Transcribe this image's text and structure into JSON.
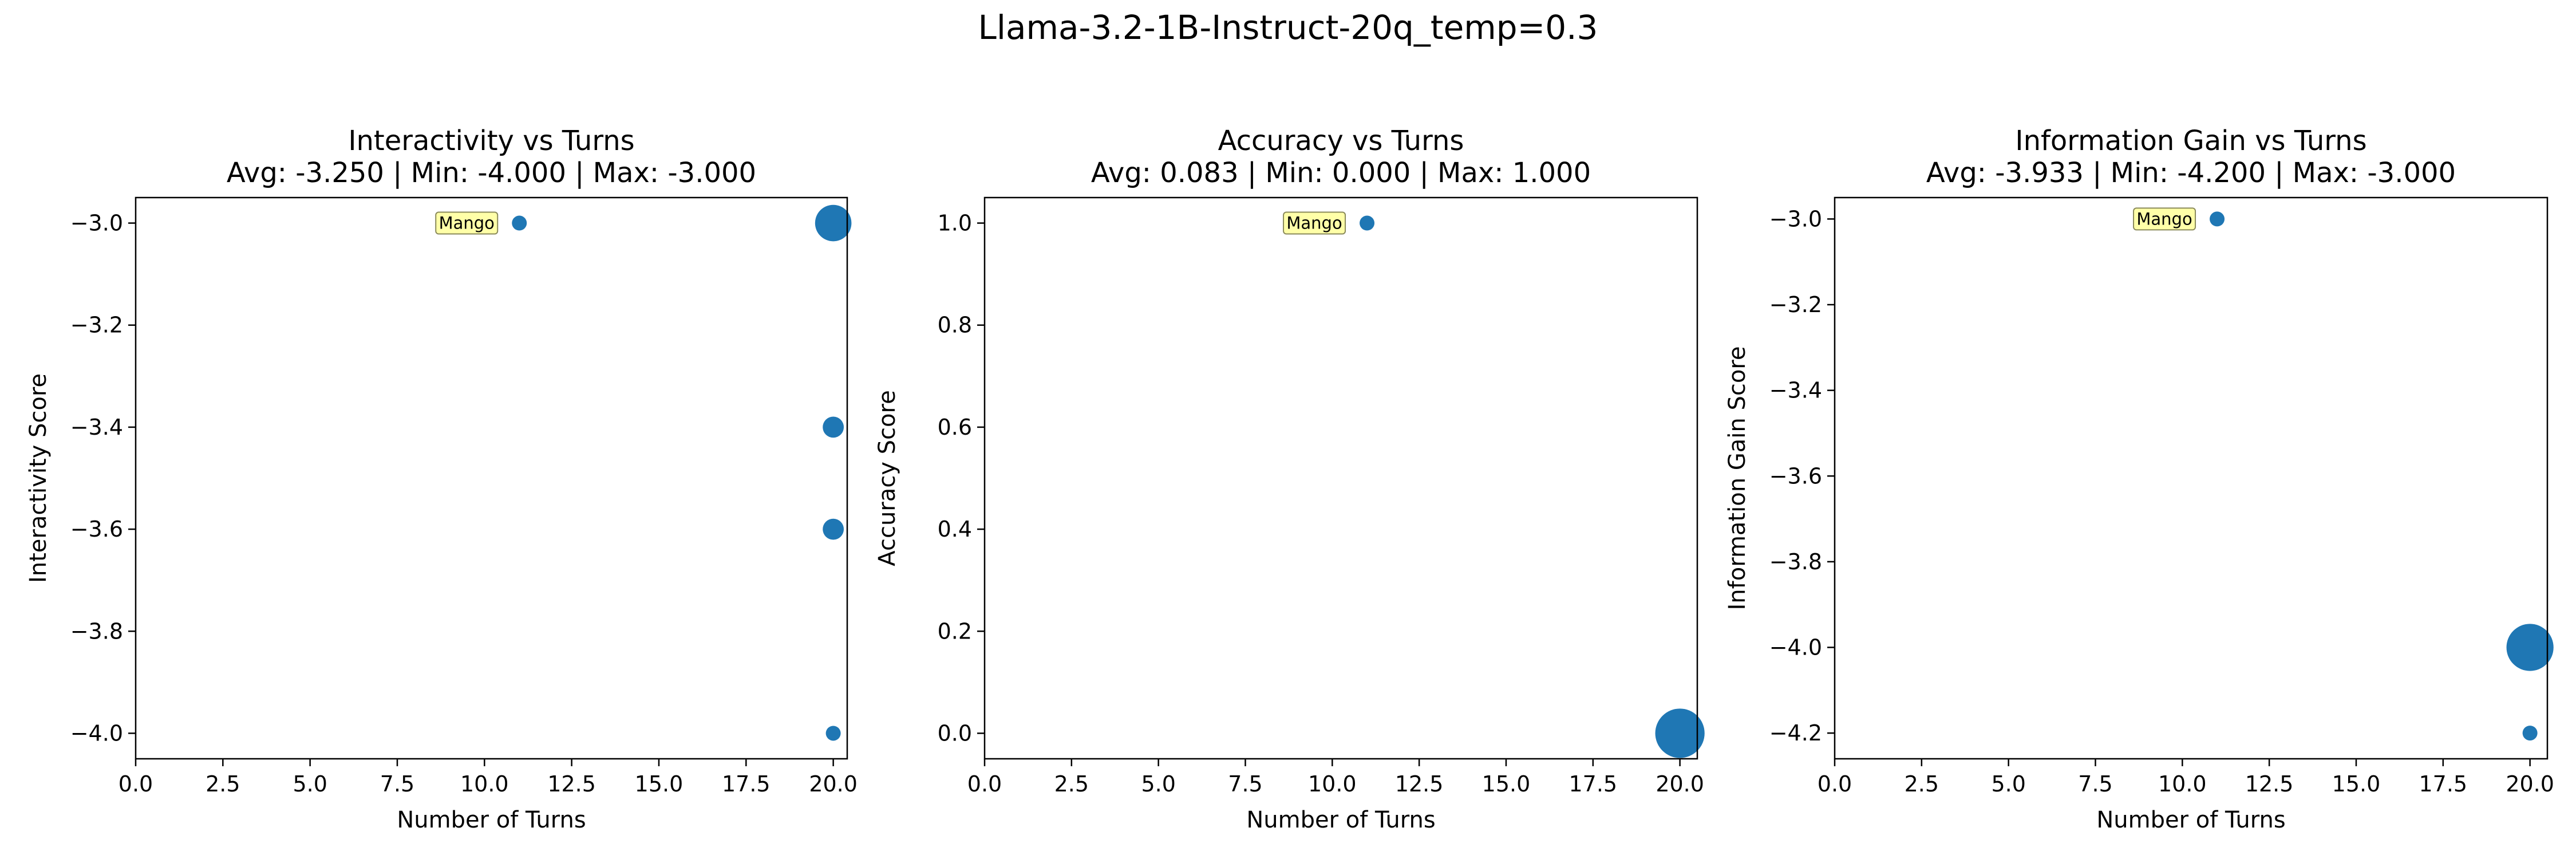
{
  "figure": {
    "suptitle": "Llama-3.2-1B-Instruct-20q_temp=0.3",
    "marker_color": "#1f77b4",
    "annotation_bg": "#ffffa8",
    "annotation_border": "#8a8a5a"
  },
  "chart_data": [
    {
      "type": "scatter",
      "title": "Interactivity vs Turns",
      "subtitle": "Avg: -3.250 | Min: -4.000 | Max: -3.000",
      "xlabel": "Number of Turns",
      "ylabel": "Interactivity Score",
      "xlim": [
        0,
        20.4
      ],
      "ylim": [
        -4.05,
        -2.95
      ],
      "xticks": [
        0,
        2.5,
        5,
        7.5,
        10,
        12.5,
        15,
        17.5,
        20
      ],
      "xtick_labels": [
        "0.0",
        "2.5",
        "5.0",
        "7.5",
        "10.0",
        "12.5",
        "15.0",
        "17.5",
        "20.0"
      ],
      "yticks": [
        -3.0,
        -3.2,
        -3.4,
        -3.6,
        -3.8,
        -4.0
      ],
      "ytick_labels": [
        "−3.0",
        "−3.2",
        "−3.4",
        "−3.6",
        "−3.8",
        "−4.0"
      ],
      "points": [
        {
          "x": 11,
          "y": -3.0,
          "count": 1
        },
        {
          "x": 20,
          "y": -3.0,
          "count": 6
        },
        {
          "x": 20,
          "y": -3.4,
          "count": 2
        },
        {
          "x": 20,
          "y": -3.6,
          "count": 2
        },
        {
          "x": 20,
          "y": -4.0,
          "count": 1
        }
      ],
      "annotation": {
        "text": "Mango",
        "x": 11,
        "y": -3.0
      }
    },
    {
      "type": "scatter",
      "title": "Accuracy vs Turns",
      "subtitle": "Avg: 0.083 | Min: 0.000 | Max: 1.000",
      "xlabel": "Number of Turns",
      "ylabel": "Accuracy Score",
      "xlim": [
        0,
        20.5
      ],
      "ylim": [
        -0.05,
        1.05
      ],
      "xticks": [
        0,
        2.5,
        5,
        7.5,
        10,
        12.5,
        15,
        17.5,
        20
      ],
      "xtick_labels": [
        "0.0",
        "2.5",
        "5.0",
        "7.5",
        "10.0",
        "12.5",
        "15.0",
        "17.5",
        "20.0"
      ],
      "yticks": [
        0.0,
        0.2,
        0.4,
        0.6,
        0.8,
        1.0
      ],
      "ytick_labels": [
        "0.0",
        "0.2",
        "0.4",
        "0.6",
        "0.8",
        "1.0"
      ],
      "points": [
        {
          "x": 11,
          "y": 1.0,
          "count": 1
        },
        {
          "x": 20,
          "y": 0.0,
          "count": 11
        }
      ],
      "annotation": {
        "text": "Mango",
        "x": 11,
        "y": 1.0
      }
    },
    {
      "type": "scatter",
      "title": "Information Gain vs Turns",
      "subtitle": "Avg: -3.933 | Min: -4.200 | Max: -3.000",
      "xlabel": "Number of Turns",
      "ylabel": "Information Gain Score",
      "xlim": [
        0,
        20.5
      ],
      "ylim": [
        -4.26,
        -2.95
      ],
      "xticks": [
        0,
        2.5,
        5,
        7.5,
        10,
        12.5,
        15,
        17.5,
        20
      ],
      "xtick_labels": [
        "0.0",
        "2.5",
        "5.0",
        "7.5",
        "10.0",
        "12.5",
        "15.0",
        "17.5",
        "20.0"
      ],
      "yticks": [
        -3.0,
        -3.2,
        -3.4,
        -3.6,
        -3.8,
        -4.0,
        -4.2
      ],
      "ytick_labels": [
        "−3.0",
        "−3.2",
        "−3.4",
        "−3.6",
        "−3.8",
        "−4.0",
        "−4.2"
      ],
      "points": [
        {
          "x": 11,
          "y": -3.0,
          "count": 1
        },
        {
          "x": 20,
          "y": -4.0,
          "count": 10
        },
        {
          "x": 20,
          "y": -4.2,
          "count": 1
        }
      ],
      "annotation": {
        "text": "Mango",
        "x": 11,
        "y": -3.0
      }
    }
  ]
}
